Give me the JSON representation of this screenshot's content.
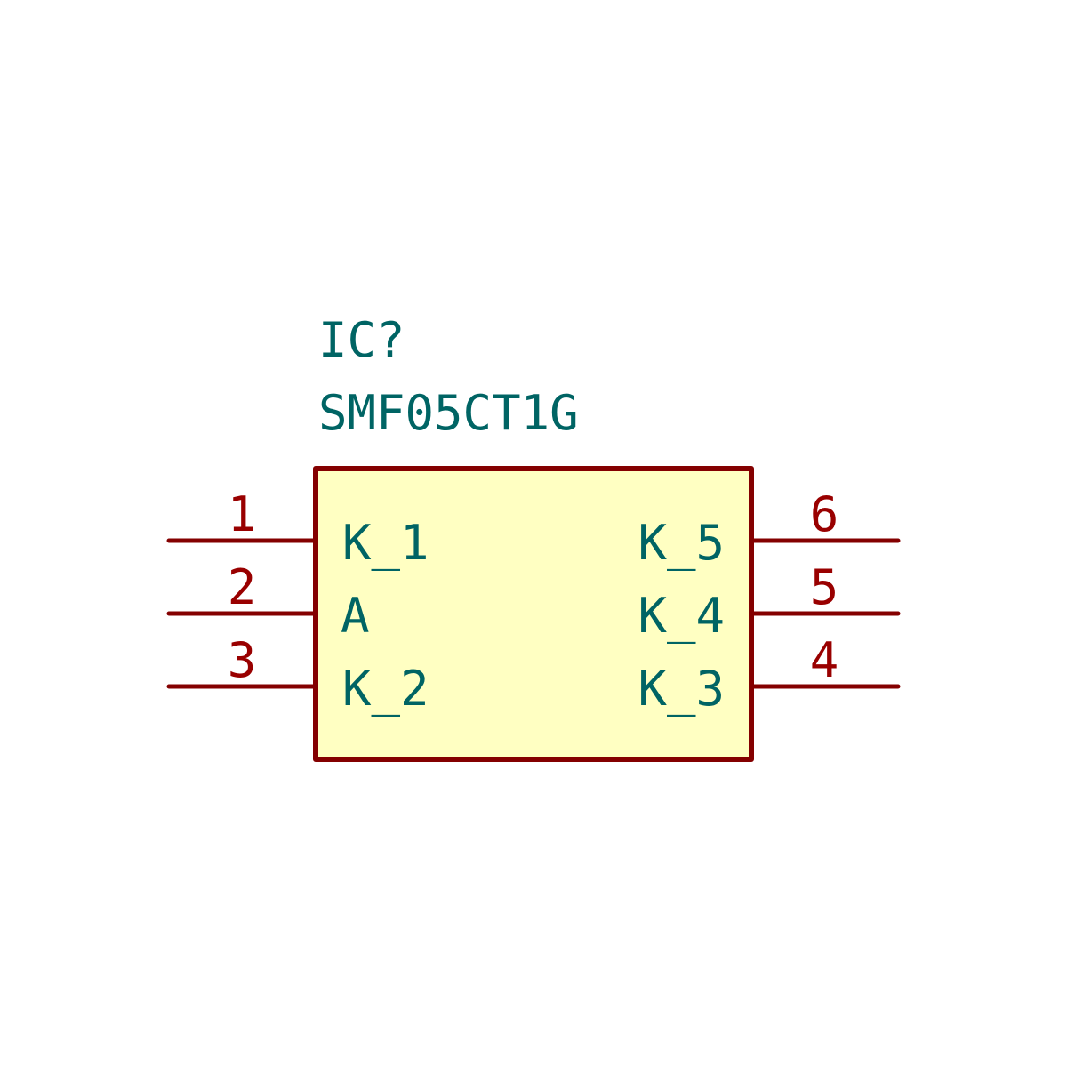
{
  "component": {
    "reference": "IC?",
    "value": "SMF05CT1G"
  },
  "pins": {
    "left": [
      {
        "number": "1",
        "name": "K_1"
      },
      {
        "number": "2",
        "name": "A"
      },
      {
        "number": "3",
        "name": "K_2"
      }
    ],
    "right": [
      {
        "number": "6",
        "name": "K_5"
      },
      {
        "number": "5",
        "name": "K_4"
      },
      {
        "number": "4",
        "name": "K_3"
      }
    ]
  },
  "colors": {
    "body_fill": "#ffffc2",
    "outline": "#840000",
    "pin_line": "#840000",
    "pin_number": "#990000",
    "text": "#006464",
    "background": "#ffffff"
  }
}
